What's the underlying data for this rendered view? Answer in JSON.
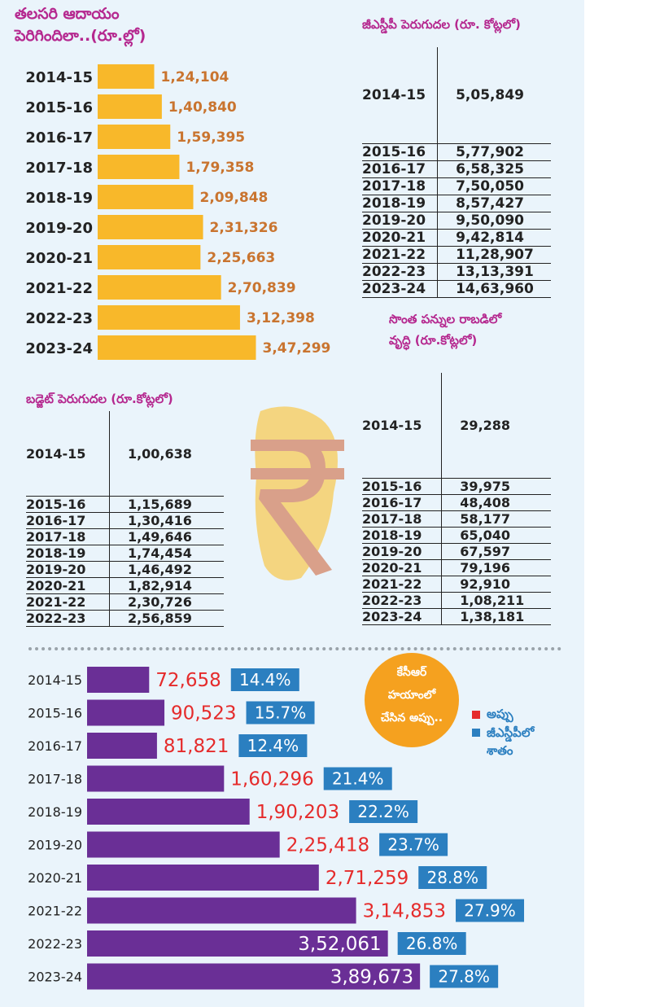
{
  "colors": {
    "panel_bg": "#eaf4fb",
    "title": "#b5288f",
    "bar1": "#f8b82a",
    "label1": "#c9742f",
    "bar2": "#6a2f96",
    "debt_label": "#e52b2b",
    "pct_box": "#2b7fc0",
    "badge": "#f5a11f"
  },
  "chart_data": [
    {
      "type": "bar",
      "orientation": "horizontal",
      "title_line1": "తలసరి ఆదాయం",
      "title_line2": "పెరిగిందిలా..(రూ.ల్లో)",
      "categories": [
        "2014-15",
        "2015-16",
        "2016-17",
        "2017-18",
        "2018-19",
        "2019-20",
        "2020-21",
        "2021-22",
        "2022-23",
        "2023-24"
      ],
      "values": [
        124104,
        140840,
        159395,
        179358,
        209848,
        231326,
        225663,
        270839,
        312398,
        347299
      ],
      "value_labels": [
        "1,24,104",
        "1,40,840",
        "1,59,395",
        "1,79,358",
        "2,09,848",
        "2,31,326",
        "2,25,663",
        "2,70,839",
        "3,12,398",
        "3,47,299"
      ]
    },
    {
      "type": "bar",
      "orientation": "horizontal",
      "categories": [
        "2014-15",
        "2015-16",
        "2016-17",
        "2017-18",
        "2018-19",
        "2019-20",
        "2020-21",
        "2021-22",
        "2022-23",
        "2023-24"
      ],
      "series": [
        {
          "name": "అప్పు",
          "values": [
            72658,
            90523,
            81821,
            160296,
            190203,
            225418,
            271259,
            314853,
            352061,
            389673
          ],
          "labels": [
            "72,658",
            "90,523",
            "81,821",
            "1,60,296",
            "1,90,203",
            "2,25,418",
            "2,71,259",
            "3,14,853",
            "3,52,061",
            "3,89,673"
          ]
        },
        {
          "name": "జీఎస్డీపీలో శాతం",
          "values": [
            14.4,
            15.7,
            12.4,
            21.4,
            22.2,
            23.7,
            28.8,
            27.9,
            26.8,
            27.8
          ],
          "labels": [
            "14.4%",
            "15.7%",
            "12.4%",
            "21.4%",
            "22.2%",
            "23.7%",
            "28.8%",
            "27.9%",
            "26.8%",
            "27.8%"
          ]
        }
      ],
      "badge": [
        "కేసీఆర్",
        "హయాంలో",
        "చేసిన అప్పు.."
      ],
      "legend": [
        "అప్పు",
        "జీఎస్డీపీలో",
        "శాతం"
      ]
    }
  ],
  "tables": {
    "gsdp": {
      "title": "జీఎస్డీపీ పెరుగుదల (రూ. కోట్లలో)",
      "rows": [
        [
          "2014-15",
          "5,05,849"
        ],
        [
          "2015-16",
          "5,77,902"
        ],
        [
          "2016-17",
          "6,58,325"
        ],
        [
          "2017-18",
          "7,50,050"
        ],
        [
          "2018-19",
          "8,57,427"
        ],
        [
          "2019-20",
          "9,50,090"
        ],
        [
          "2020-21",
          "9,42,814"
        ],
        [
          "2021-22",
          "11,28,907"
        ],
        [
          "2022-23",
          "13,13,391"
        ],
        [
          "2023-24",
          "14,63,960"
        ]
      ]
    },
    "tax": {
      "title_line1": "సొంత పన్నుల రాబడిలో",
      "title_line2": "వృద్ధి (రూ.కోట్లలో)",
      "rows": [
        [
          "2014-15",
          "29,288"
        ],
        [
          "2015-16",
          "39,975"
        ],
        [
          "2016-17",
          "48,408"
        ],
        [
          "2017-18",
          "58,177"
        ],
        [
          "2018-19",
          "65,040"
        ],
        [
          "2019-20",
          "67,597"
        ],
        [
          "2020-21",
          "79,196"
        ],
        [
          "2021-22",
          "92,910"
        ],
        [
          "2022-23",
          "1,08,211"
        ],
        [
          "2023-24",
          "1,38,181"
        ]
      ]
    },
    "budget": {
      "title": "బడ్జెట్ పెరుగుదల (రూ.కోట్లలో)",
      "rows": [
        [
          "2014-15",
          "1,00,638"
        ],
        [
          "2015-16",
          "1,15,689"
        ],
        [
          "2016-17",
          "1,30,416"
        ],
        [
          "2017-18",
          "1,49,646"
        ],
        [
          "2018-19",
          "1,74,454"
        ],
        [
          "2019-20",
          "1,46,492"
        ],
        [
          "2020-21",
          "1,82,914"
        ],
        [
          "2021-22",
          "2,30,726"
        ],
        [
          "2022-23",
          "2,56,859"
        ]
      ]
    }
  }
}
